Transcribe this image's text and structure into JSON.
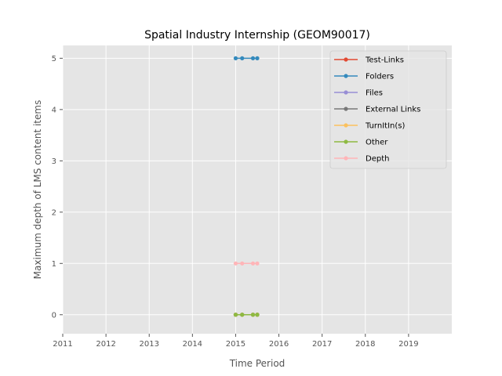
{
  "chart_data": {
    "type": "line",
    "title": "Spatial Industry Internship (GEOM90017)",
    "xlabel": "Time Period",
    "ylabel": "Maximum depth of LMS content items",
    "xlim": [
      2011,
      2020
    ],
    "ylim": [
      -0.37,
      5.25
    ],
    "xticks": [
      "2011",
      "2012",
      "2013",
      "2014",
      "2015",
      "2016",
      "2017",
      "2018",
      "2019"
    ],
    "yticks": [
      "0",
      "1",
      "2",
      "3",
      "4",
      "5"
    ],
    "grid": true,
    "legend_position": "top-right",
    "x": [
      2015.0,
      2015.15,
      2015.4,
      2015.5
    ],
    "series": [
      {
        "name": "Test-Links",
        "color": "#e24a33",
        "values": [
          0,
          0,
          0,
          0
        ]
      },
      {
        "name": "Folders",
        "color": "#348abd",
        "values": [
          5,
          5,
          5,
          5
        ]
      },
      {
        "name": "Files",
        "color": "#988ed5",
        "values": [
          0,
          0,
          0,
          0
        ]
      },
      {
        "name": "External Links",
        "color": "#777777",
        "values": [
          0,
          0,
          0,
          0
        ]
      },
      {
        "name": "TurnItIn(s)",
        "color": "#fbc15e",
        "values": [
          0,
          0,
          0,
          0
        ]
      },
      {
        "name": "Other",
        "color": "#8eba42",
        "values": [
          0,
          0,
          0,
          0
        ]
      },
      {
        "name": "Depth",
        "color": "#ffb5b8",
        "values": [
          1,
          1,
          1,
          1
        ]
      }
    ]
  }
}
